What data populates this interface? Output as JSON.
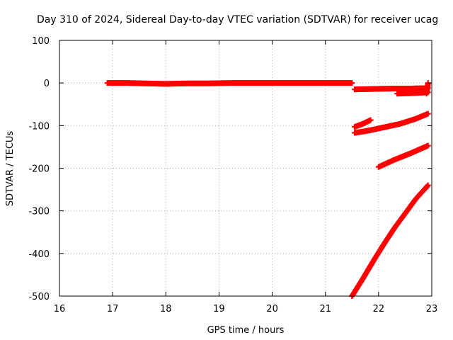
{
  "chart_data": {
    "type": "scatter",
    "title": "Day 310 of 2024, Sidereal Day-to-day VTEC variation (SDTVAR) for receiver ucag",
    "xlabel": "GPS time / hours",
    "ylabel": "SDTVAR / TECUs",
    "xlim": [
      16,
      23
    ],
    "ylim": [
      -500,
      100
    ],
    "x_ticks": [
      16,
      17,
      18,
      19,
      20,
      21,
      22,
      23
    ],
    "y_ticks": [
      100,
      0,
      -100,
      -200,
      -300,
      -400,
      -500
    ],
    "x_tick_labels": [
      "16",
      "17",
      "18",
      "19",
      "20",
      "21",
      "22",
      "23"
    ],
    "y_tick_labels": [
      "100",
      "0",
      "-100",
      "-200",
      "-300",
      "-400",
      "-500"
    ],
    "grid": true,
    "marker": "plus",
    "color": "#ff0000",
    "series": [
      {
        "points": [
          [
            16.9,
            0
          ],
          [
            17.3,
            0
          ],
          [
            17.6,
            -1
          ],
          [
            18.0,
            -2
          ],
          [
            18.4,
            -1
          ],
          [
            18.8,
            -1
          ],
          [
            19.2,
            0
          ],
          [
            19.6,
            0
          ],
          [
            20.0,
            0
          ],
          [
            20.4,
            0
          ],
          [
            20.8,
            0
          ],
          [
            21.2,
            0
          ],
          [
            21.5,
            0
          ]
        ]
      },
      {
        "points": [
          [
            21.55,
            -15
          ],
          [
            21.9,
            -14
          ],
          [
            22.3,
            -13
          ],
          [
            22.6,
            -13
          ],
          [
            22.93,
            -12
          ]
        ]
      },
      {
        "points": [
          [
            22.35,
            -25
          ],
          [
            22.6,
            -24
          ],
          [
            22.93,
            -22
          ]
        ]
      },
      {
        "points": [
          [
            22.9,
            -25
          ],
          [
            22.92,
            -12
          ],
          [
            22.93,
            0
          ]
        ]
      },
      {
        "points": [
          [
            21.55,
            -103
          ],
          [
            21.7,
            -96
          ],
          [
            21.85,
            -87
          ]
        ]
      },
      {
        "points": [
          [
            21.55,
            -117
          ],
          [
            21.8,
            -112
          ],
          [
            22.1,
            -104
          ],
          [
            22.4,
            -96
          ],
          [
            22.7,
            -84
          ],
          [
            22.93,
            -72
          ]
        ]
      },
      {
        "points": [
          [
            22.0,
            -197
          ],
          [
            22.3,
            -180
          ],
          [
            22.6,
            -165
          ],
          [
            22.93,
            -147
          ]
        ]
      },
      {
        "points": [
          [
            21.5,
            -500
          ],
          [
            21.7,
            -460
          ],
          [
            21.9,
            -418
          ],
          [
            22.1,
            -378
          ],
          [
            22.3,
            -340
          ],
          [
            22.5,
            -306
          ],
          [
            22.7,
            -272
          ],
          [
            22.93,
            -240
          ]
        ]
      }
    ]
  }
}
